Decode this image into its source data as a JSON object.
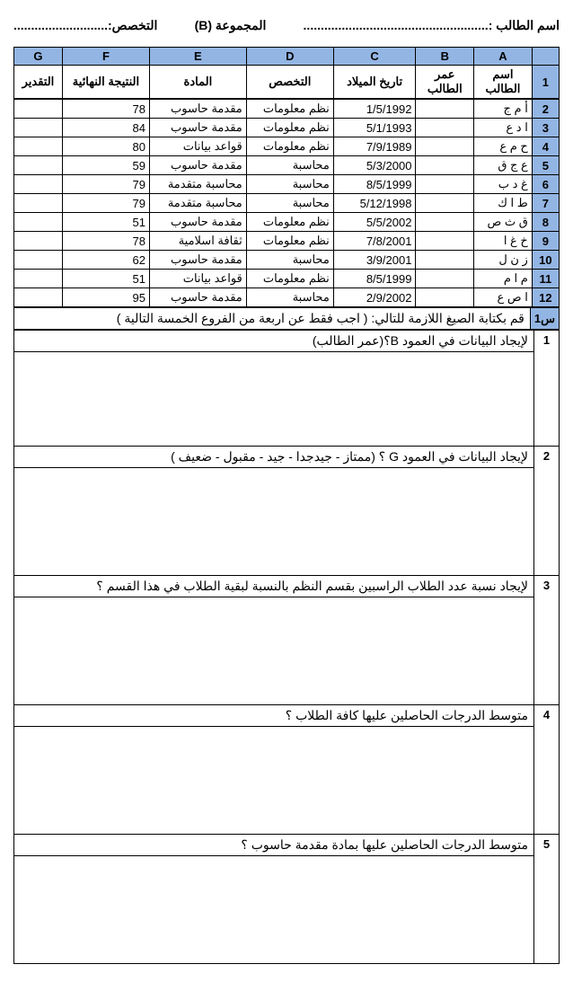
{
  "header": {
    "name_label": "اسم الطالب :.....................................................",
    "group_label": "المجموعة (B)",
    "spec_label": "التخصص:...........................",
    "spacer": ""
  },
  "columns": {
    "a": "A",
    "b": "B",
    "c": "C",
    "d": "D",
    "e": "E",
    "f": "F",
    "g": "G"
  },
  "subheaders": {
    "a": "اسم الطالب",
    "b": "عمر الطالب",
    "c": "تاريخ الميلاد",
    "d": "التخصص",
    "e": "المادة",
    "f": "النتيجة النهائية",
    "g": "التقدير"
  },
  "rows": [
    {
      "n": "1"
    },
    {
      "n": "2",
      "a": "أ م ج",
      "b": "",
      "c": "1/5/1992",
      "d": "نظم معلومات",
      "e": "مقدمة حاسوب",
      "f": "78",
      "g": ""
    },
    {
      "n": "3",
      "a": "ا د ع",
      "b": "",
      "c": "5/1/1993",
      "d": "نظم معلومات",
      "e": "مقدمة حاسوب",
      "f": "84",
      "g": ""
    },
    {
      "n": "4",
      "a": "ح م ع",
      "b": "",
      "c": "7/9/1989",
      "d": "نظم معلومات",
      "e": "قواعد بيانات",
      "f": "80",
      "g": ""
    },
    {
      "n": "5",
      "a": "ع ج ق",
      "b": "",
      "c": "5/3/2000",
      "d": "محاسبة",
      "e": "مقدمة حاسوب",
      "f": "59",
      "g": ""
    },
    {
      "n": "6",
      "a": "غ د ب",
      "b": "",
      "c": "8/5/1999",
      "d": "محاسبة",
      "e": "محاسبة متقدمة",
      "f": "79",
      "g": ""
    },
    {
      "n": "7",
      "a": "ط ا ك",
      "b": "",
      "c": "5/12/1998",
      "d": "محاسبة",
      "e": "محاسبة متقدمة",
      "f": "79",
      "g": ""
    },
    {
      "n": "8",
      "a": "ق ث ص",
      "b": "",
      "c": "5/5/2002",
      "d": "نظم معلومات",
      "e": "مقدمة حاسوب",
      "f": "51",
      "g": ""
    },
    {
      "n": "9",
      "a": "خ غ ا",
      "b": "",
      "c": "7/8/2001",
      "d": "نظم معلومات",
      "e": "ثقافة اسلامية",
      "f": "78",
      "g": ""
    },
    {
      "n": "10",
      "a": "ز ن ل",
      "b": "",
      "c": "3/9/2001",
      "d": "محاسبة",
      "e": "مقدمة حاسوب",
      "f": "62",
      "g": ""
    },
    {
      "n": "11",
      "a": "م ا م",
      "b": "",
      "c": "8/5/1999",
      "d": "نظم معلومات",
      "e": "قواعد بيانات",
      "f": "51",
      "g": ""
    },
    {
      "n": "12",
      "a": "ا ص ع",
      "b": "",
      "c": "2/9/2002",
      "d": "محاسبة",
      "e": "مقدمة حاسوب",
      "f": "95",
      "g": ""
    }
  ],
  "questions_header": {
    "label": "س1",
    "text": "قم بكتابة الصيغ اللازمة للتالي:   ( اجب فقط عن اربعة من الفروع الخمسة التالية )"
  },
  "questions": [
    {
      "n": "1",
      "text": "لإيجاد البيانات في العمود B؟(عمر الطالب)"
    },
    {
      "n": "2",
      "text": "لإيجاد البيانات في العمود G ؟ (ممتاز - جيدجدا - جيد - مقبول - ضعيف )"
    },
    {
      "n": "3",
      "text": "لإيجاد نسبة عدد الطلاب الراسبين بقسم النظم بالنسبة لبقية الطلاب في هذا القسم ؟"
    },
    {
      "n": "4",
      "text": "متوسط الدرجات الحاصلين عليها كافة الطلاب ؟"
    },
    {
      "n": "5",
      "text": "متوسط الدرجات الحاصلين عليها بمادة مقدمة حاسوب ؟"
    }
  ]
}
